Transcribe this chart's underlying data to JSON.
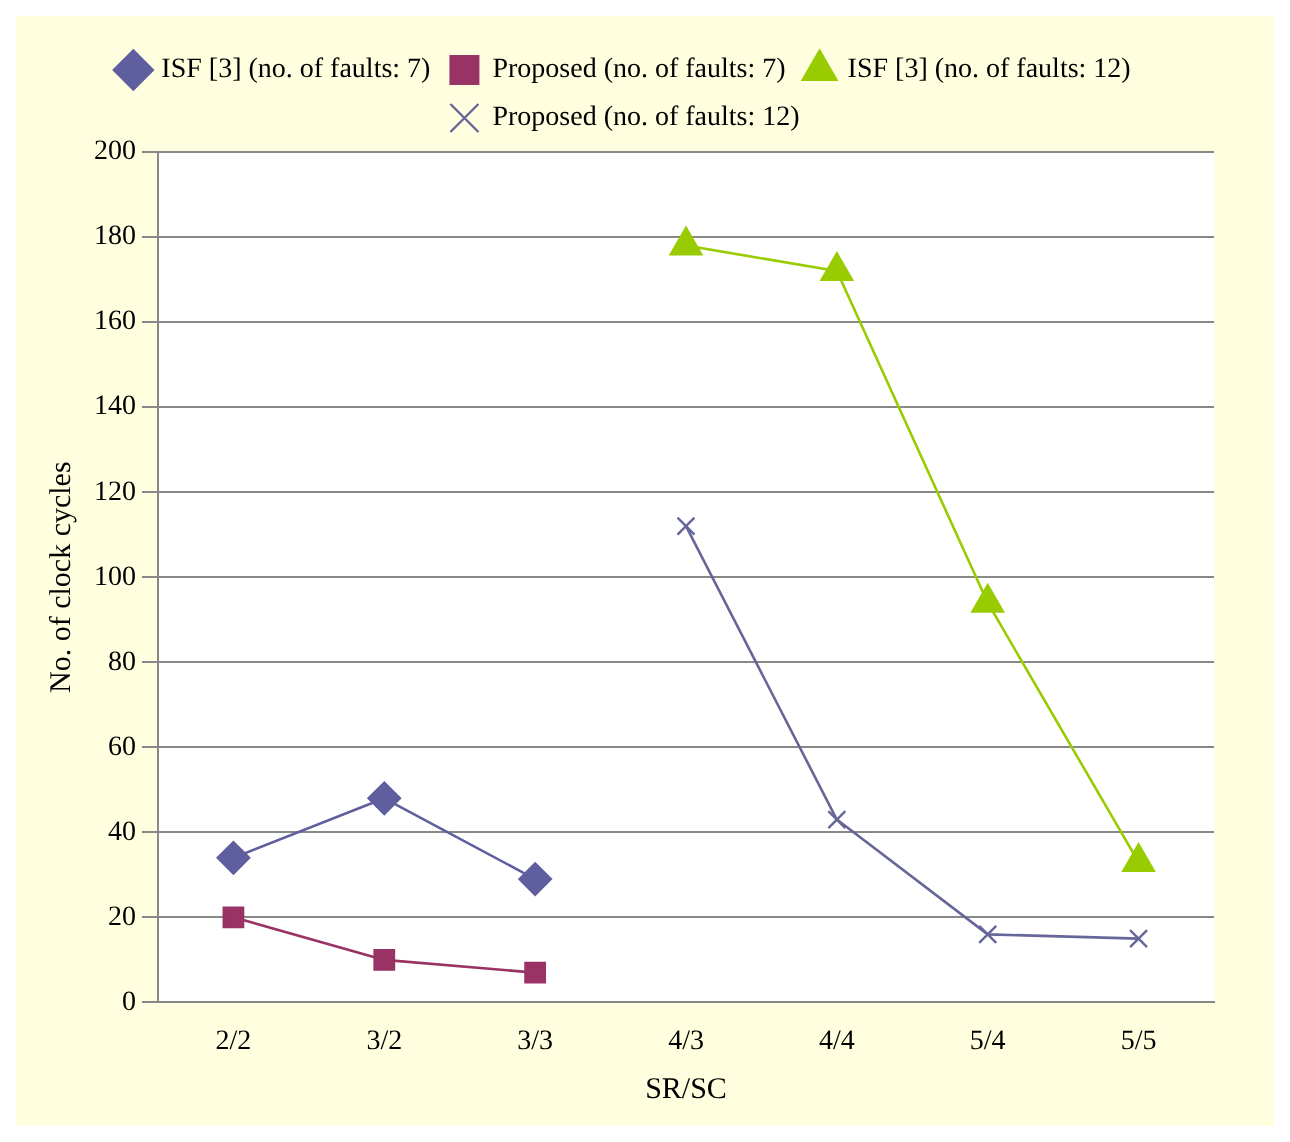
{
  "chart_data": {
    "type": "line",
    "xlabel": "SR/SC",
    "ylabel": "No. of clock cycles",
    "categories": [
      "2/2",
      "3/2",
      "3/3",
      "4/3",
      "4/4",
      "5/4",
      "5/5"
    ],
    "ylim": [
      0,
      200
    ],
    "yticks": [
      0,
      20,
      40,
      60,
      80,
      100,
      120,
      140,
      160,
      180,
      200
    ],
    "grid": "y",
    "legend": "top",
    "series": [
      {
        "name": "ISF [3] (no. of faults: 7)",
        "color": "#5f5f9f",
        "marker": "diamond",
        "values": [
          34,
          48,
          29,
          null,
          null,
          null,
          null
        ]
      },
      {
        "name": "Proposed (no. of faults: 7)",
        "color": "#993366",
        "marker": "square",
        "values": [
          20,
          10,
          7,
          null,
          null,
          null,
          null
        ]
      },
      {
        "name": "ISF [3] (no. of faults: 12)",
        "color": "#99cc00",
        "marker": "triangle",
        "values": [
          null,
          null,
          null,
          178,
          172,
          94,
          33
        ]
      },
      {
        "name": "Proposed (no. of faults: 12)",
        "color": "#666699",
        "marker": "cross",
        "values": [
          null,
          null,
          null,
          112,
          43,
          16,
          15
        ]
      }
    ]
  }
}
